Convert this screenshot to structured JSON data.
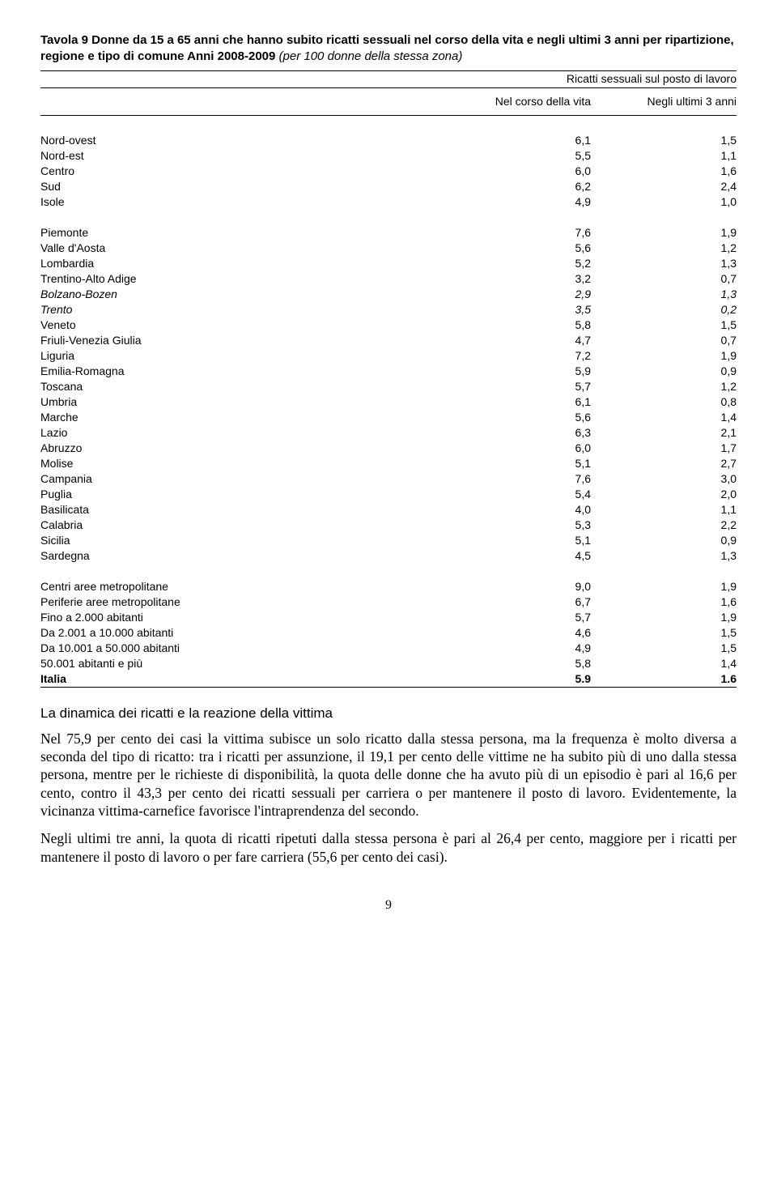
{
  "title": {
    "prefix": "Tavola 9  ",
    "bold": "Donne da 15 a 65 anni che hanno subito ricatti sessuali nel corso della vita e negli ultimi 3 anni per ripartizione, regione e tipo di comune  Anni 2008-2009 ",
    "italic": "(per 100 donne della stessa zona)"
  },
  "header": {
    "super": "Ricatti sessuali sul posto di lavoro",
    "col1": "Nel corso della vita",
    "col2": "Negli ultimi 3 anni"
  },
  "group_macro": [
    {
      "label": "Nord-ovest",
      "v1": "6,1",
      "v2": "1,5"
    },
    {
      "label": "Nord-est",
      "v1": "5,5",
      "v2": "1,1"
    },
    {
      "label": "Centro",
      "v1": "6,0",
      "v2": "1,6"
    },
    {
      "label": "Sud",
      "v1": "6,2",
      "v2": "2,4"
    },
    {
      "label": "Isole",
      "v1": "4,9",
      "v2": "1,0"
    }
  ],
  "group_regioni": [
    {
      "label": "Piemonte",
      "v1": "7,6",
      "v2": "1,9"
    },
    {
      "label": "Valle d'Aosta",
      "v1": "5,6",
      "v2": "1,2"
    },
    {
      "label": "Lombardia",
      "v1": "5,2",
      "v2": "1,3"
    },
    {
      "label": "Trentino-Alto Adige",
      "v1": "3,2",
      "v2": "0,7"
    },
    {
      "label": "Bolzano-Bozen",
      "v1": "2,9",
      "v2": "1,3",
      "italic": true
    },
    {
      "label": "Trento",
      "v1": "3,5",
      "v2": "0,2",
      "italic": true
    },
    {
      "label": "Veneto",
      "v1": "5,8",
      "v2": "1,5"
    },
    {
      "label": "Friuli-Venezia Giulia",
      "v1": "4,7",
      "v2": "0,7"
    },
    {
      "label": "Liguria",
      "v1": "7,2",
      "v2": "1,9"
    },
    {
      "label": "Emilia-Romagna",
      "v1": "5,9",
      "v2": "0,9"
    },
    {
      "label": "Toscana",
      "v1": "5,7",
      "v2": "1,2"
    },
    {
      "label": "Umbria",
      "v1": "6,1",
      "v2": "0,8"
    },
    {
      "label": "Marche",
      "v1": "5,6",
      "v2": "1,4"
    },
    {
      "label": "Lazio",
      "v1": "6,3",
      "v2": "2,1"
    },
    {
      "label": "Abruzzo",
      "v1": "6,0",
      "v2": "1,7"
    },
    {
      "label": "Molise",
      "v1": "5,1",
      "v2": "2,7"
    },
    {
      "label": "Campania",
      "v1": "7,6",
      "v2": "3,0"
    },
    {
      "label": "Puglia",
      "v1": "5,4",
      "v2": "2,0"
    },
    {
      "label": "Basilicata",
      "v1": "4,0",
      "v2": "1,1"
    },
    {
      "label": "Calabria",
      "v1": "5,3",
      "v2": "2,2"
    },
    {
      "label": "Sicilia",
      "v1": "5,1",
      "v2": "0,9"
    },
    {
      "label": "Sardegna",
      "v1": "4,5",
      "v2": "1,3"
    }
  ],
  "group_comuni": [
    {
      "label": "Centri aree metropolitane",
      "v1": "9,0",
      "v2": "1,9"
    },
    {
      "label": "Periferie aree metropolitane",
      "v1": "6,7",
      "v2": "1,6"
    },
    {
      "label": "Fino a 2.000 abitanti",
      "v1": "5,7",
      "v2": "1,9"
    },
    {
      "label": "Da 2.001 a 10.000 abitanti",
      "v1": "4,6",
      "v2": "1,5"
    },
    {
      "label": "Da 10.001 a 50.000 abitanti",
      "v1": "4,9",
      "v2": "1,5"
    },
    {
      "label": "50.001 abitanti e più",
      "v1": "5,8",
      "v2": "1,4"
    },
    {
      "label": "Italia",
      "v1": "5.9",
      "v2": "1.6",
      "bold": true
    }
  ],
  "section_title": "La dinamica dei ricatti e la reazione della vittima",
  "para1": "Nel 75,9 per cento dei casi la vittima subisce un solo ricatto dalla stessa persona, ma la frequenza è molto diversa a seconda del tipo di ricatto: tra i ricatti per assunzione, il 19,1 per cento delle vittime ne ha subito più di uno dalla stessa persona, mentre per le richieste di disponibilità, la quota delle donne che ha avuto più di un episodio è pari al 16,6 per cento, contro il 43,3 per cento dei ricatti sessuali per carriera o per mantenere il posto di lavoro. Evidentemente, la vicinanza vittima-carnefice favorisce l'intraprendenza del secondo.",
  "para2": "Negli ultimi tre anni, la quota di ricatti ripetuti dalla stessa persona è pari al 26,4 per cento, maggiore per i ricatti per mantenere il posto di lavoro o per fare carriera (55,6 per cento dei casi).",
  "page_num": "9"
}
